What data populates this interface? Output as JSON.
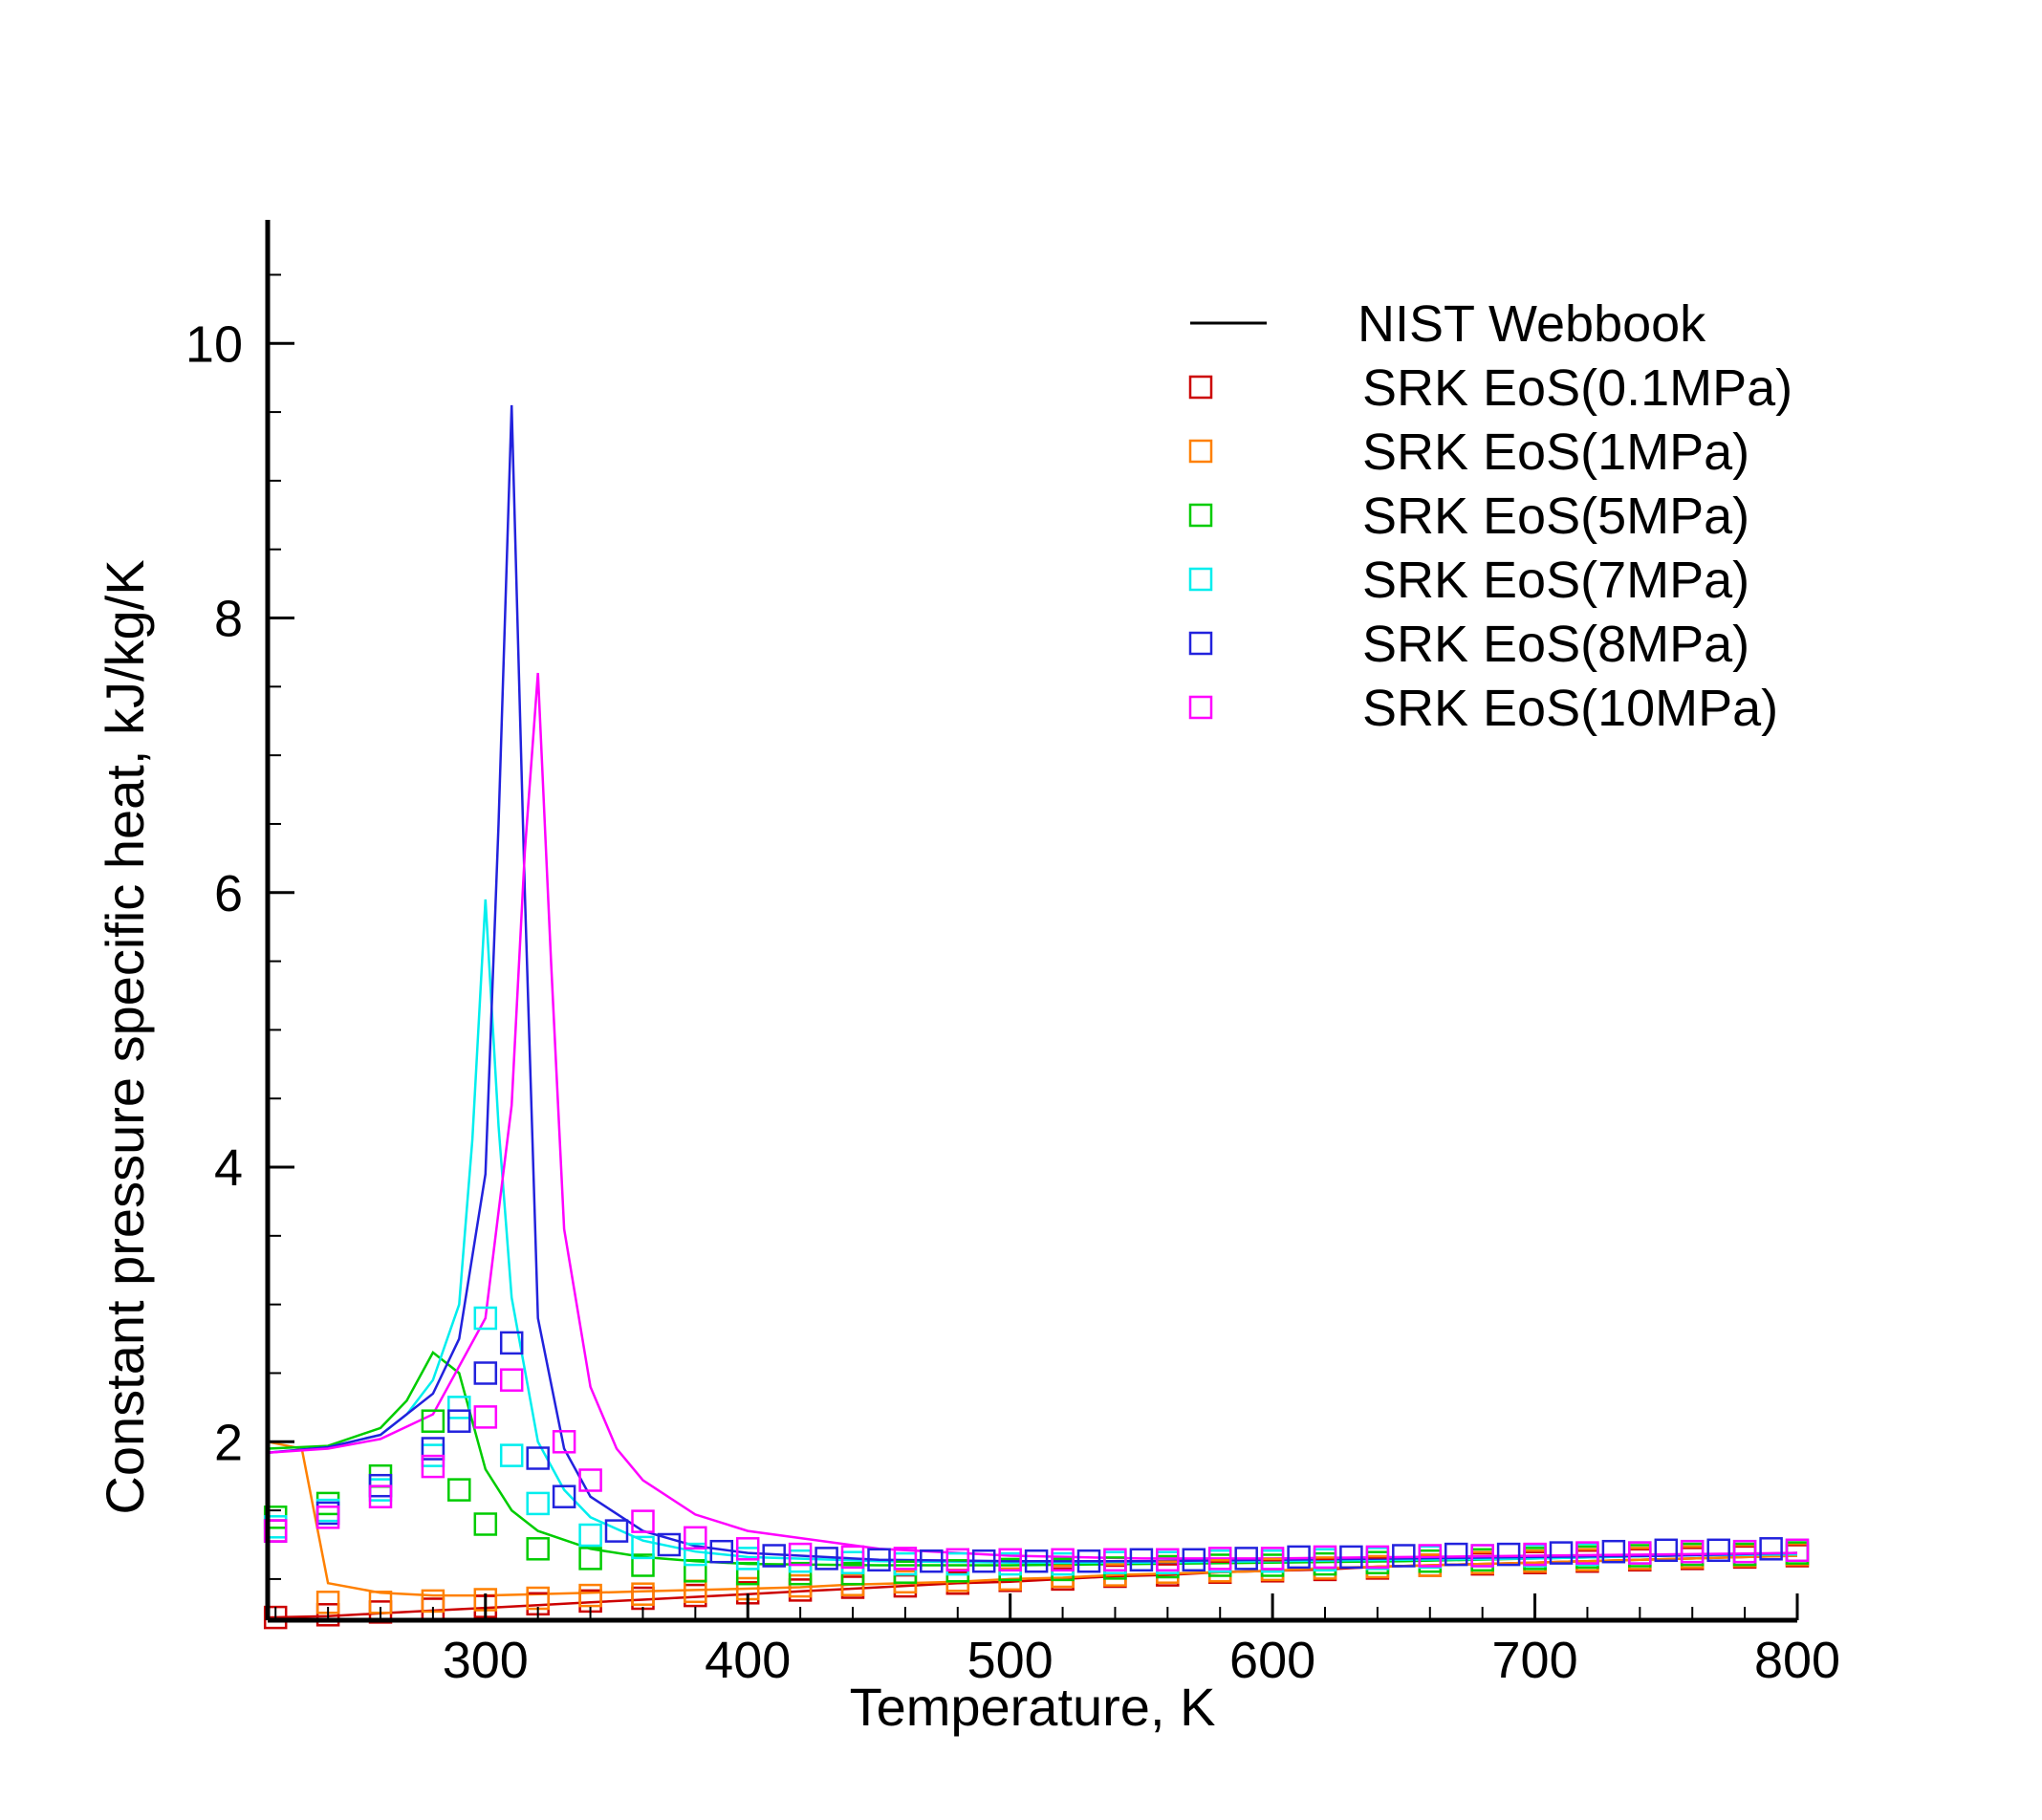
{
  "chart_data": {
    "type": "scatter",
    "title": "",
    "xlabel": "Temperature, K",
    "ylabel": "Constant pressure specific heat, kJ/kg/K",
    "xlim": [
      217,
      800
    ],
    "ylim": [
      0.7,
      10.9
    ],
    "x_ticks": [
      300,
      400,
      500,
      600,
      700,
      800
    ],
    "y_ticks": [
      2,
      4,
      6,
      8,
      10
    ],
    "x_tick_labels": [
      "300",
      "400",
      "500",
      "600",
      "700",
      "800"
    ],
    "y_tick_labels": [
      "2",
      "4",
      "6",
      "8",
      "10"
    ],
    "grid": false,
    "legend": {
      "position": "top-right",
      "line_label": "NIST Webbook",
      "marker_labels": [
        "SRK EoS(0.1MPa)",
        "SRK EoS(1MPa)",
        "SRK EoS(5MPa)",
        "SRK EoS(7MPa)",
        "SRK EoS(8MPa)",
        "SRK EoS(10MPa)"
      ]
    },
    "series": [
      {
        "name": "SRK EoS(0.1MPa)",
        "color": "#cc0000",
        "line": {
          "x": [
            217,
            240,
            260,
            280,
            300,
            320,
            340,
            360,
            380,
            400,
            420,
            440,
            460,
            480,
            500,
            520,
            540,
            560,
            580,
            600,
            620,
            640,
            660,
            680,
            700,
            720,
            740,
            760,
            780,
            800
          ],
          "y": [
            0.72,
            0.73,
            0.75,
            0.77,
            0.79,
            0.81,
            0.83,
            0.85,
            0.87,
            0.89,
            0.91,
            0.93,
            0.95,
            0.97,
            0.98,
            1.0,
            1.02,
            1.03,
            1.05,
            1.06,
            1.07,
            1.09,
            1.1,
            1.11,
            1.12,
            1.13,
            1.14,
            1.15,
            1.16,
            1.17
          ]
        },
        "markers": {
          "x": [
            220,
            240,
            260,
            280,
            300,
            320,
            340,
            360,
            380,
            400,
            420,
            440,
            460,
            480,
            500,
            520,
            540,
            560,
            580,
            600,
            620,
            640,
            660,
            680,
            700,
            720,
            740,
            760,
            780,
            800
          ],
          "y": [
            0.72,
            0.74,
            0.76,
            0.78,
            0.8,
            0.82,
            0.84,
            0.86,
            0.88,
            0.9,
            0.92,
            0.94,
            0.95,
            0.97,
            0.99,
            1.0,
            1.02,
            1.03,
            1.05,
            1.06,
            1.07,
            1.08,
            1.1,
            1.11,
            1.12,
            1.13,
            1.14,
            1.15,
            1.16,
            1.17
          ]
        }
      },
      {
        "name": "SRK EoS(1MPa)",
        "color": "#ff8000",
        "line": {
          "x": [
            217,
            230,
            240,
            260,
            280,
            300,
            320,
            340,
            360,
            380,
            400,
            420,
            440,
            460,
            480,
            500,
            520,
            540,
            560,
            580,
            600,
            620,
            640,
            660,
            680,
            700,
            720,
            740,
            760,
            780,
            800
          ],
          "y": [
            2.0,
            1.95,
            0.97,
            0.9,
            0.88,
            0.88,
            0.89,
            0.9,
            0.91,
            0.92,
            0.93,
            0.94,
            0.96,
            0.97,
            0.98,
            1.0,
            1.01,
            1.03,
            1.04,
            1.05,
            1.06,
            1.08,
            1.09,
            1.1,
            1.11,
            1.12,
            1.13,
            1.14,
            1.15,
            1.16,
            1.17
          ]
        },
        "markers": {
          "x": [
            220,
            240,
            260,
            280,
            300,
            320,
            340,
            360,
            380,
            400,
            420,
            440,
            460,
            480,
            500,
            520,
            540,
            560,
            580,
            600,
            620,
            640,
            660,
            680,
            700,
            720,
            740,
            760,
            780,
            800
          ],
          "y": [
            1.35,
            0.83,
            0.83,
            0.84,
            0.85,
            0.86,
            0.88,
            0.89,
            0.91,
            0.93,
            0.95,
            0.96,
            0.98,
            0.99,
            1.0,
            1.02,
            1.03,
            1.05,
            1.06,
            1.07,
            1.08,
            1.09,
            1.1,
            1.12,
            1.13,
            1.14,
            1.15,
            1.16,
            1.17,
            1.18
          ]
        }
      },
      {
        "name": "SRK EoS(5MPa)",
        "color": "#00cc00",
        "line": {
          "x": [
            217,
            240,
            260,
            270,
            280,
            290,
            300,
            310,
            320,
            340,
            360,
            380,
            400,
            450,
            500,
            550,
            600,
            650,
            700,
            750,
            800
          ],
          "y": [
            1.95,
            1.97,
            2.1,
            2.3,
            2.65,
            2.5,
            1.8,
            1.5,
            1.35,
            1.22,
            1.16,
            1.13,
            1.11,
            1.1,
            1.1,
            1.11,
            1.12,
            1.13,
            1.15,
            1.17,
            1.19
          ]
        },
        "markers": {
          "x": [
            220,
            240,
            260,
            280,
            290,
            300,
            320,
            340,
            360,
            380,
            400,
            420,
            440,
            460,
            480,
            500,
            520,
            540,
            560,
            580,
            600,
            620,
            640,
            660,
            680,
            700,
            720,
            740,
            760,
            780,
            800
          ],
          "y": [
            1.45,
            1.55,
            1.75,
            2.15,
            1.65,
            1.4,
            1.22,
            1.15,
            1.1,
            1.06,
            1.04,
            1.04,
            1.04,
            1.05,
            1.06,
            1.07,
            1.07,
            1.08,
            1.09,
            1.1,
            1.1,
            1.11,
            1.12,
            1.13,
            1.14,
            1.15,
            1.16,
            1.17,
            1.18,
            1.18,
            1.19
          ]
        }
      },
      {
        "name": "SRK EoS(7MPa)",
        "color": "#00eeee",
        "line": {
          "x": [
            217,
            240,
            260,
            270,
            280,
            290,
            295,
            300,
            305,
            310,
            320,
            330,
            340,
            360,
            380,
            400,
            450,
            500,
            550,
            600,
            650,
            700,
            750,
            800
          ],
          "y": [
            1.92,
            1.96,
            2.05,
            2.2,
            2.45,
            3.0,
            4.2,
            5.95,
            4.3,
            3.05,
            2.0,
            1.65,
            1.45,
            1.28,
            1.2,
            1.16,
            1.13,
            1.12,
            1.12,
            1.13,
            1.14,
            1.15,
            1.17,
            1.18
          ]
        },
        "markers": {
          "x": [
            220,
            240,
            260,
            280,
            290,
            300,
            310,
            320,
            340,
            360,
            380,
            400,
            420,
            440,
            460,
            480,
            500,
            520,
            540,
            560,
            580,
            600,
            620,
            640,
            660,
            680,
            700,
            720,
            740,
            760,
            780,
            800
          ],
          "y": [
            1.38,
            1.5,
            1.65,
            1.9,
            2.25,
            2.9,
            1.9,
            1.55,
            1.32,
            1.23,
            1.18,
            1.15,
            1.13,
            1.12,
            1.11,
            1.11,
            1.11,
            1.11,
            1.12,
            1.12,
            1.13,
            1.13,
            1.14,
            1.15,
            1.16,
            1.17,
            1.17,
            1.18,
            1.19,
            1.2,
            1.2,
            1.21
          ]
        }
      },
      {
        "name": "SRK EoS(8MPa)",
        "color": "#2222dd",
        "line": {
          "x": [
            217,
            240,
            260,
            280,
            290,
            300,
            305,
            310,
            315,
            320,
            330,
            340,
            360,
            380,
            400,
            450,
            500,
            550,
            600,
            650,
            700,
            750,
            800
          ],
          "y": [
            1.92,
            1.96,
            2.05,
            2.35,
            2.75,
            3.95,
            6.5,
            9.55,
            6.0,
            2.9,
            1.95,
            1.6,
            1.35,
            1.24,
            1.19,
            1.14,
            1.13,
            1.13,
            1.14,
            1.15,
            1.16,
            1.17,
            1.19
          ]
        },
        "markers": {
          "x": [
            220,
            240,
            260,
            280,
            290,
            300,
            310,
            320,
            330,
            350,
            370,
            390,
            410,
            430,
            450,
            470,
            490,
            510,
            530,
            550,
            570,
            590,
            610,
            630,
            650,
            670,
            690,
            710,
            730,
            750,
            770,
            790
          ],
          "y": [
            1.35,
            1.48,
            1.68,
            1.95,
            2.15,
            2.5,
            2.72,
            1.88,
            1.6,
            1.35,
            1.25,
            1.2,
            1.17,
            1.15,
            1.14,
            1.13,
            1.13,
            1.13,
            1.13,
            1.14,
            1.14,
            1.15,
            1.16,
            1.16,
            1.17,
            1.18,
            1.18,
            1.19,
            1.2,
            1.21,
            1.21,
            1.22
          ]
        }
      },
      {
        "name": "SRK EoS(10MPa)",
        "color": "#ff00ff",
        "line": {
          "x": [
            217,
            240,
            260,
            280,
            300,
            310,
            315,
            320,
            325,
            330,
            340,
            350,
            360,
            380,
            400,
            450,
            500,
            550,
            600,
            650,
            700,
            750,
            800
          ],
          "y": [
            1.92,
            1.95,
            2.02,
            2.2,
            2.9,
            4.45,
            6.3,
            7.6,
            5.5,
            3.55,
            2.4,
            1.95,
            1.72,
            1.47,
            1.35,
            1.22,
            1.17,
            1.15,
            1.15,
            1.16,
            1.17,
            1.18,
            1.19
          ]
        },
        "markers": {
          "x": [
            220,
            240,
            260,
            280,
            300,
            310,
            330,
            340,
            360,
            380,
            400,
            420,
            440,
            460,
            480,
            500,
            520,
            540,
            560,
            580,
            600,
            620,
            640,
            660,
            680,
            700,
            720,
            740,
            760,
            780,
            800
          ],
          "y": [
            1.35,
            1.45,
            1.6,
            1.82,
            2.18,
            2.45,
            2.0,
            1.72,
            1.42,
            1.3,
            1.22,
            1.18,
            1.16,
            1.15,
            1.14,
            1.14,
            1.14,
            1.14,
            1.14,
            1.15,
            1.15,
            1.16,
            1.16,
            1.17,
            1.17,
            1.18,
            1.19,
            1.19,
            1.2,
            1.2,
            1.21
          ]
        }
      }
    ]
  }
}
